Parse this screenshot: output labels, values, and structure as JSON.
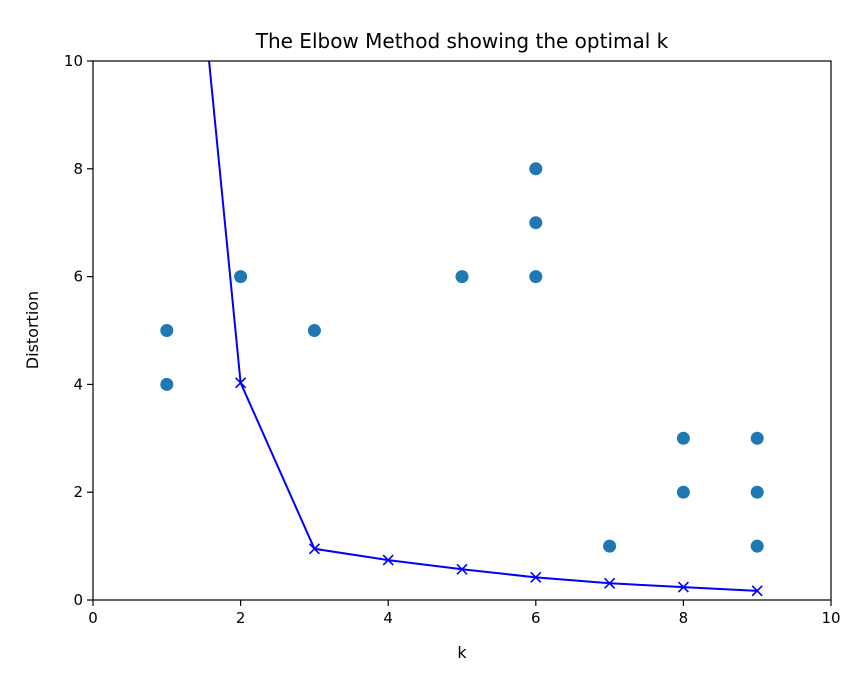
{
  "chart_data": {
    "type": "line",
    "title": "The Elbow Method showing the optimal k",
    "xlabel": "k",
    "ylabel": "Distortion",
    "xlim": [
      0,
      10
    ],
    "ylim": [
      0,
      10
    ],
    "grid": false,
    "x_ticks": [
      "0",
      "2",
      "4",
      "6",
      "8",
      "10"
    ],
    "y_ticks": [
      "0",
      "2",
      "4",
      "6",
      "8",
      "10"
    ],
    "series": [
      {
        "type": "line",
        "marker": "x",
        "color": "#0000ff",
        "x": [
          1,
          2,
          3,
          4,
          5,
          6,
          7,
          8,
          9
        ],
        "y": [
          18.0,
          4.03,
          0.95,
          0.74,
          0.57,
          0.42,
          0.31,
          0.24,
          0.17
        ]
      },
      {
        "type": "scatter",
        "marker": "o",
        "color": "#1f77b4",
        "x": [
          1,
          1,
          2,
          3,
          5,
          6,
          6,
          6,
          7,
          8,
          8,
          9,
          9,
          9
        ],
        "y": [
          5,
          4,
          6,
          5,
          6,
          8,
          7,
          6,
          1,
          3,
          2,
          3,
          2,
          1
        ]
      }
    ]
  }
}
